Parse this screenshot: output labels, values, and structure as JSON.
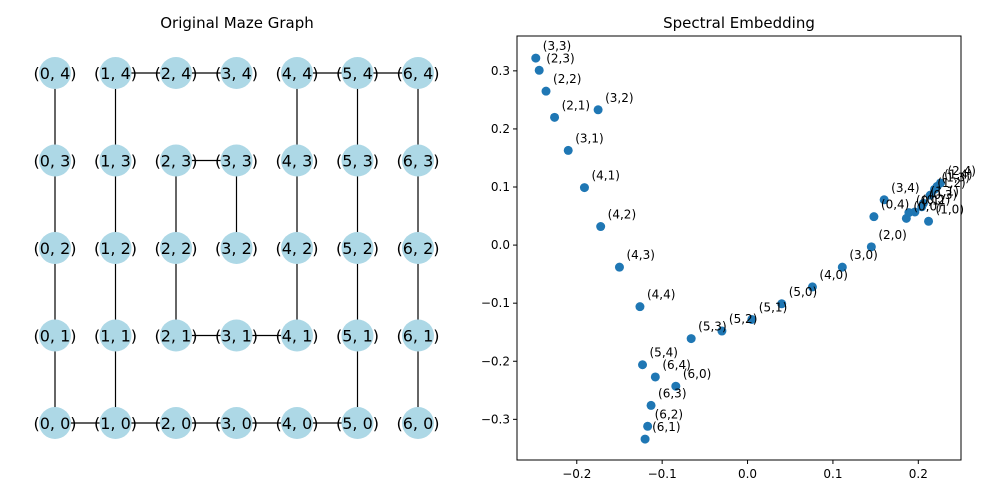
{
  "chart_data": [
    {
      "type": "graph",
      "title": "Original Maze Graph",
      "node_color": "#add8e6",
      "edge_color": "#000000",
      "nodes": [
        [
          0,
          0
        ],
        [
          0,
          1
        ],
        [
          0,
          2
        ],
        [
          0,
          3
        ],
        [
          0,
          4
        ],
        [
          1,
          0
        ],
        [
          1,
          1
        ],
        [
          1,
          2
        ],
        [
          1,
          3
        ],
        [
          1,
          4
        ],
        [
          2,
          0
        ],
        [
          2,
          1
        ],
        [
          2,
          2
        ],
        [
          2,
          3
        ],
        [
          2,
          4
        ],
        [
          3,
          0
        ],
        [
          3,
          1
        ],
        [
          3,
          2
        ],
        [
          3,
          3
        ],
        [
          3,
          4
        ],
        [
          4,
          0
        ],
        [
          4,
          1
        ],
        [
          4,
          2
        ],
        [
          4,
          3
        ],
        [
          4,
          4
        ],
        [
          5,
          0
        ],
        [
          5,
          1
        ],
        [
          5,
          2
        ],
        [
          5,
          3
        ],
        [
          5,
          4
        ],
        [
          6,
          0
        ],
        [
          6,
          1
        ],
        [
          6,
          2
        ],
        [
          6,
          3
        ],
        [
          6,
          4
        ]
      ],
      "edges": [
        [
          [
            0,
            0
          ],
          [
            0,
            1
          ]
        ],
        [
          [
            0,
            1
          ],
          [
            0,
            2
          ]
        ],
        [
          [
            0,
            2
          ],
          [
            0,
            3
          ]
        ],
        [
          [
            0,
            3
          ],
          [
            0,
            4
          ]
        ],
        [
          [
            0,
            0
          ],
          [
            1,
            0
          ]
        ],
        [
          [
            1,
            0
          ],
          [
            2,
            0
          ]
        ],
        [
          [
            2,
            0
          ],
          [
            3,
            0
          ]
        ],
        [
          [
            3,
            0
          ],
          [
            4,
            0
          ]
        ],
        [
          [
            4,
            0
          ],
          [
            5,
            0
          ]
        ],
        [
          [
            1,
            0
          ],
          [
            1,
            1
          ]
        ],
        [
          [
            1,
            1
          ],
          [
            1,
            2
          ]
        ],
        [
          [
            1,
            2
          ],
          [
            1,
            3
          ]
        ],
        [
          [
            1,
            3
          ],
          [
            1,
            4
          ]
        ],
        [
          [
            1,
            4
          ],
          [
            2,
            4
          ]
        ],
        [
          [
            2,
            4
          ],
          [
            3,
            4
          ]
        ],
        [
          [
            2,
            1
          ],
          [
            2,
            2
          ]
        ],
        [
          [
            2,
            2
          ],
          [
            2,
            3
          ]
        ],
        [
          [
            2,
            1
          ],
          [
            3,
            1
          ]
        ],
        [
          [
            3,
            1
          ],
          [
            4,
            1
          ]
        ],
        [
          [
            4,
            1
          ],
          [
            4,
            2
          ]
        ],
        [
          [
            4,
            2
          ],
          [
            4,
            3
          ]
        ],
        [
          [
            4,
            3
          ],
          [
            4,
            4
          ]
        ],
        [
          [
            4,
            4
          ],
          [
            5,
            4
          ]
        ],
        [
          [
            5,
            4
          ],
          [
            6,
            4
          ]
        ],
        [
          [
            2,
            3
          ],
          [
            3,
            3
          ]
        ],
        [
          [
            3,
            3
          ],
          [
            3,
            2
          ]
        ],
        [
          [
            5,
            4
          ],
          [
            5,
            3
          ]
        ],
        [
          [
            5,
            3
          ],
          [
            5,
            2
          ]
        ],
        [
          [
            5,
            2
          ],
          [
            5,
            1
          ]
        ],
        [
          [
            5,
            1
          ],
          [
            5,
            0
          ]
        ],
        [
          [
            6,
            4
          ],
          [
            6,
            3
          ]
        ],
        [
          [
            6,
            3
          ],
          [
            6,
            2
          ]
        ],
        [
          [
            6,
            2
          ],
          [
            6,
            1
          ]
        ],
        [
          [
            6,
            1
          ],
          [
            6,
            0
          ]
        ]
      ]
    },
    {
      "type": "scatter",
      "title": "Spectral Embedding",
      "xlim": [
        -0.27,
        0.25
      ],
      "ylim": [
        -0.37,
        0.36
      ],
      "xticks": [
        -0.2,
        -0.1,
        0.0,
        0.1,
        0.2
      ],
      "xtick_labels": [
        "−0.2",
        "−0.1",
        "0.0",
        "0.1",
        "0.2"
      ],
      "yticks": [
        -0.3,
        -0.2,
        -0.1,
        0.0,
        0.1,
        0.2,
        0.3
      ],
      "ytick_labels": [
        "−0.3",
        "−0.2",
        "−0.1",
        "0.0",
        "0.1",
        "0.2",
        "0.3"
      ],
      "point_color": "#1f77b4",
      "points": [
        {
          "label": "(3,3)",
          "x": -0.248,
          "y": 0.322
        },
        {
          "label": "(2,3)",
          "x": -0.244,
          "y": 0.301
        },
        {
          "label": "(2,2)",
          "x": -0.236,
          "y": 0.265
        },
        {
          "label": "(2,1)",
          "x": -0.226,
          "y": 0.22
        },
        {
          "label": "(3,2)",
          "x": -0.175,
          "y": 0.233
        },
        {
          "label": "(3,1)",
          "x": -0.21,
          "y": 0.163
        },
        {
          "label": "(4,1)",
          "x": -0.191,
          "y": 0.099
        },
        {
          "label": "(4,2)",
          "x": -0.172,
          "y": 0.032
        },
        {
          "label": "(4,3)",
          "x": -0.15,
          "y": -0.038
        },
        {
          "label": "(4,4)",
          "x": -0.126,
          "y": -0.106
        },
        {
          "label": "(5,4)",
          "x": -0.123,
          "y": -0.206
        },
        {
          "label": "(5,3)",
          "x": -0.066,
          "y": -0.161
        },
        {
          "label": "(5,2)",
          "x": -0.03,
          "y": -0.148
        },
        {
          "label": "(5,1)",
          "x": 0.005,
          "y": -0.128
        },
        {
          "label": "(5,0)",
          "x": 0.04,
          "y": -0.101
        },
        {
          "label": "(4,0)",
          "x": 0.076,
          "y": -0.072
        },
        {
          "label": "(3,0)",
          "x": 0.111,
          "y": -0.038
        },
        {
          "label": "(2,0)",
          "x": 0.145,
          "y": -0.003
        },
        {
          "label": "(6,4)",
          "x": -0.108,
          "y": -0.227
        },
        {
          "label": "(6,0)",
          "x": -0.084,
          "y": -0.243
        },
        {
          "label": "(6,3)",
          "x": -0.113,
          "y": -0.276
        },
        {
          "label": "(6,2)",
          "x": -0.117,
          "y": -0.312
        },
        {
          "label": "(6,1)",
          "x": -0.12,
          "y": -0.334
        },
        {
          "label": "(1,0)",
          "x": 0.212,
          "y": 0.041
        },
        {
          "label": "(0,4)",
          "x": 0.148,
          "y": 0.049
        },
        {
          "label": "(3,4)",
          "x": 0.16,
          "y": 0.078
        },
        {
          "label": "(0,0)",
          "x": 0.186,
          "y": 0.046
        },
        {
          "label": "(0,1)",
          "x": 0.189,
          "y": 0.056
        },
        {
          "label": "(0,2)",
          "x": 0.196,
          "y": 0.057
        },
        {
          "label": "(0,3)",
          "x": 0.204,
          "y": 0.066
        },
        {
          "label": "(1,1)",
          "x": 0.206,
          "y": 0.072
        },
        {
          "label": "(1,2)",
          "x": 0.214,
          "y": 0.086
        },
        {
          "label": "(1,3)",
          "x": 0.219,
          "y": 0.096
        },
        {
          "label": "(1,4)",
          "x": 0.222,
          "y": 0.101
        },
        {
          "label": "(2,4)",
          "x": 0.226,
          "y": 0.107
        }
      ]
    }
  ]
}
